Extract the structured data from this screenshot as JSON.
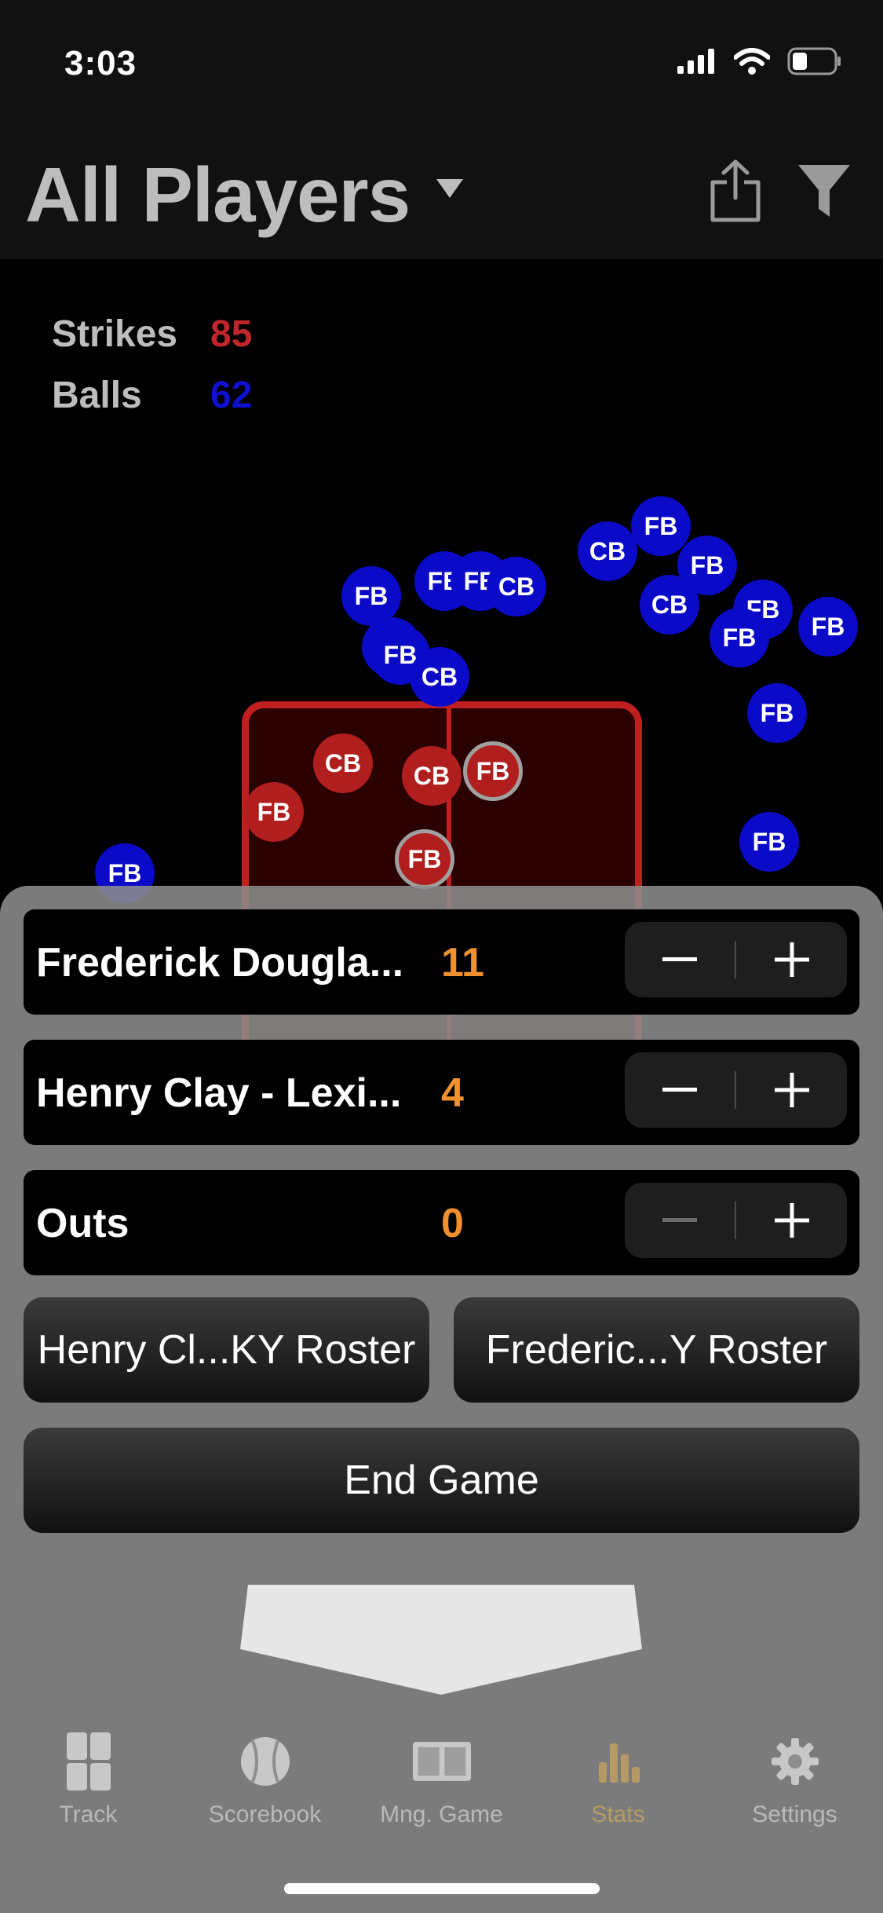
{
  "status_bar": {
    "time": "3:03"
  },
  "header": {
    "title": "All Players"
  },
  "stats": {
    "strikes_label": "Strikes",
    "strikes_value": "85",
    "balls_label": "Balls",
    "balls_value": "62"
  },
  "pitch_labels": [
    "FB",
    "CB"
  ],
  "counters": [
    {
      "label": "Frederick Dougla...",
      "value": "11"
    },
    {
      "label": "Henry Clay - Lexi...",
      "value": "4"
    },
    {
      "label": "Outs",
      "value": "0"
    }
  ],
  "actions": {
    "roster_left": "Henry Cl...KY Roster",
    "roster_right": "Frederic...Y Roster",
    "end_game": "End Game"
  },
  "tabs": [
    {
      "label": "Track",
      "icon": "grid-icon"
    },
    {
      "label": "Scorebook",
      "icon": "baseball-icon"
    },
    {
      "label": "Mng. Game",
      "icon": "scoreboard-icon"
    },
    {
      "label": "Stats",
      "icon": "bar-chart-icon",
      "active": true
    },
    {
      "label": "Settings",
      "icon": "gear-icon"
    }
  ],
  "colors": {
    "strike": "#b01e1e",
    "ball": "#0a0ac8",
    "accent": "#f0902e"
  }
}
